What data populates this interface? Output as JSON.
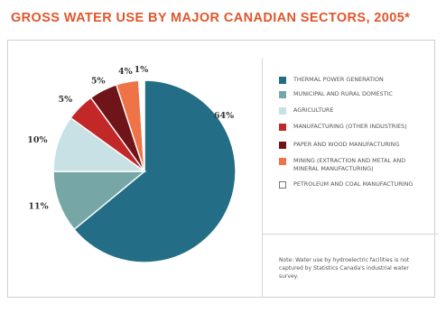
{
  "title": "GROSS WATER USE BY MAJOR CANADIAN SECTORS, 2005*",
  "note": "Note: Water use by hydroelectric facilities is not captured by Statistics Canada's industrial water survey.",
  "chart_data": {
    "type": "pie",
    "title": "GROSS WATER USE BY MAJOR CANADIAN SECTORS, 2005*",
    "legend_position": "right",
    "series": [
      {
        "name": "Thermal power generation",
        "value": 64,
        "label": "64%",
        "color": "#236e86"
      },
      {
        "name": "Municipal and rural domestic",
        "value": 11,
        "label": "11%",
        "color": "#76a7a6"
      },
      {
        "name": "Agriculture",
        "value": 10,
        "label": "10%",
        "color": "#c7e1e5"
      },
      {
        "name": "Manufacturing (other industries)",
        "value": 5,
        "label": "5%",
        "color": "#c22828"
      },
      {
        "name": "Paper and wood manufacturing",
        "value": 5,
        "label": "5%",
        "color": "#6f1418"
      },
      {
        "name": "Mining (extraction and metal and mineral manufacturing)",
        "value": 4,
        "label": "4%",
        "color": "#ee7448"
      },
      {
        "name": "Petroleum and coal manufacturing",
        "value": 1,
        "label": "1%",
        "color": "#ffffff"
      }
    ]
  }
}
